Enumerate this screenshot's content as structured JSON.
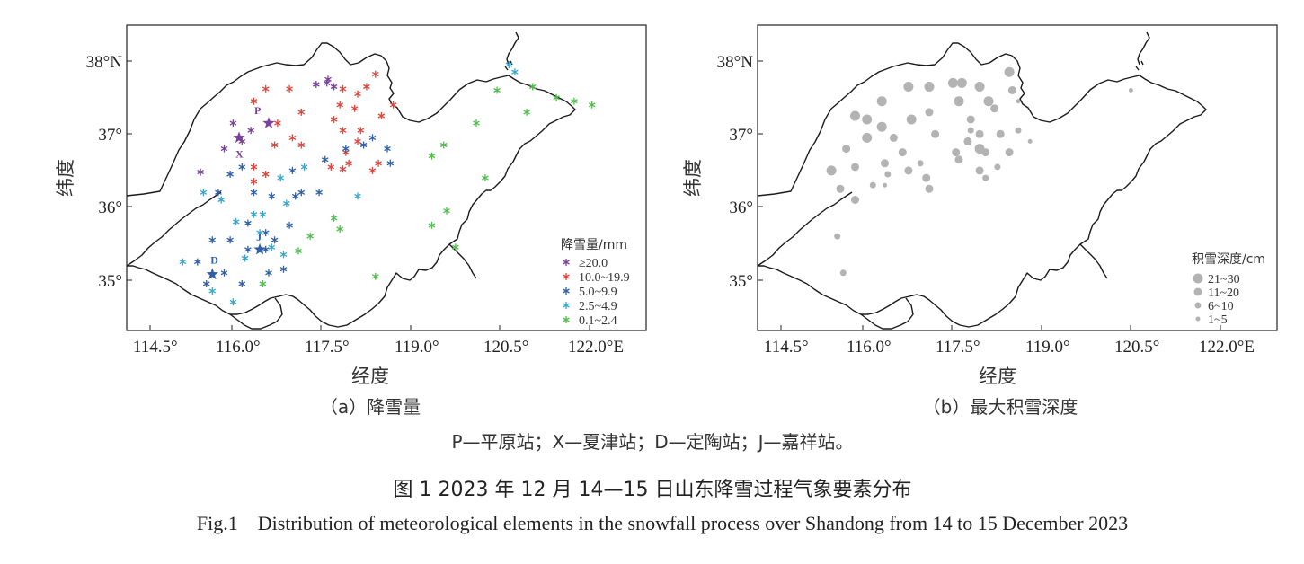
{
  "panel_a": {
    "caption": "（a）降雪量",
    "xlabel": "经度",
    "ylabel": "纬度",
    "x_ticks": [
      "114.5°",
      "116.0°",
      "117.5°",
      "119.0°",
      "120.5°",
      "122.0°E"
    ],
    "y_ticks": [
      "38°N",
      "37°",
      "36°",
      "35°"
    ],
    "legend": {
      "title": "降雪量/mm",
      "items": [
        {
          "label": "≥20.0",
          "color": "#7b3f9e"
        },
        {
          "label": "10.0~19.9",
          "color": "#e0453a"
        },
        {
          "label": "5.0~9.9",
          "color": "#2f5fa8"
        },
        {
          "label": "2.5~4.9",
          "color": "#3aa6c9"
        },
        {
          "label": "0.1~2.4",
          "color": "#4fbf4a"
        }
      ]
    },
    "stations": [
      {
        "id": "P",
        "label": "P",
        "lon": 116.5,
        "lat": 37.15,
        "color": "#7b3f9e"
      },
      {
        "id": "X",
        "label": "X",
        "lon": 116.0,
        "lat": 36.95,
        "color": "#7b3f9e"
      },
      {
        "id": "D",
        "label": "D",
        "lon": 115.55,
        "lat": 35.08,
        "color": "#2f5fa8"
      },
      {
        "id": "J",
        "label": "J",
        "lon": 116.35,
        "lat": 35.42,
        "color": "#2f5fa8"
      }
    ]
  },
  "panel_b": {
    "caption": "（b）最大积雪深度",
    "xlabel": "经度",
    "ylabel": "纬度",
    "x_ticks": [
      "114.5°",
      "116.0°",
      "117.5°",
      "119.0°",
      "120.5°",
      "122.0°E"
    ],
    "y_ticks": [
      "38°N",
      "37°",
      "36°",
      "35°"
    ],
    "legend": {
      "title": "积雪深度/cm",
      "items": [
        {
          "label": "21~30",
          "r": 5.5
        },
        {
          "label": "11~20",
          "r": 4.5
        },
        {
          "label": "6~10",
          "r": 3.5
        },
        {
          "label": "1~5",
          "r": 2.5
        }
      ],
      "color": "#b3b3b3"
    }
  },
  "note": "P—平原站；X—夏津站；D—定陶站；J—嘉祥站。",
  "figure_title_cn": "图 1   2023 年 12 月 14—15 日山东降雪过程气象要素分布",
  "figure_title_en": "Fig.1    Distribution of meteorological elements in the snowfall process over Shandong from 14 to 15 December 2023",
  "chart_data": [
    {
      "type": "scatter",
      "title": "（a）降雪量",
      "xlabel": "经度",
      "ylabel": "纬度",
      "xlim": [
        114.0,
        122.5
      ],
      "ylim": [
        34.3,
        38.5
      ],
      "series": [
        {
          "name": "≥20.0",
          "points": [
            [
              115.9,
              37.15
            ],
            [
              116.2,
              37.05
            ],
            [
              116.05,
              36.9
            ],
            [
              115.75,
              36.8
            ],
            [
              117.3,
              37.68
            ],
            [
              117.48,
              37.7
            ],
            [
              117.6,
              37.65
            ],
            [
              115.35,
              36.48
            ],
            [
              117.5,
              37.75
            ]
          ]
        },
        {
          "name": "10.0~19.9",
          "points": [
            [
              116.85,
              37.62
            ],
            [
              116.45,
              37.62
            ],
            [
              116.25,
              37.45
            ],
            [
              117.05,
              37.3
            ],
            [
              116.65,
              37.15
            ],
            [
              116.9,
              36.95
            ],
            [
              117.05,
              36.85
            ],
            [
              116.6,
              36.85
            ],
            [
              116.25,
              36.55
            ],
            [
              116.45,
              36.45
            ],
            [
              116.25,
              36.35
            ],
            [
              117.75,
              37.62
            ],
            [
              118.0,
              37.55
            ],
            [
              117.7,
              37.4
            ],
            [
              117.95,
              37.35
            ],
            [
              118.15,
              37.65
            ],
            [
              118.4,
              37.25
            ],
            [
              118.6,
              37.4
            ],
            [
              118.3,
              37.82
            ],
            [
              117.6,
              37.2
            ],
            [
              117.75,
              37.05
            ],
            [
              118.05,
              37.05
            ],
            [
              118.0,
              36.9
            ],
            [
              117.8,
              36.75
            ],
            [
              118.25,
              36.5
            ],
            [
              117.85,
              36.6
            ],
            [
              117.75,
              36.52
            ],
            [
              118.35,
              36.6
            ],
            [
              117.55,
              36.55
            ]
          ]
        },
        {
          "name": "5.0~9.9",
          "points": [
            [
              115.85,
              36.45
            ],
            [
              116.05,
              36.55
            ],
            [
              115.65,
              36.2
            ],
            [
              116.25,
              36.2
            ],
            [
              116.15,
              35.78
            ],
            [
              115.55,
              35.55
            ],
            [
              115.85,
              35.55
            ],
            [
              116.15,
              35.42
            ],
            [
              116.45,
              35.42
            ],
            [
              116.6,
              35.55
            ],
            [
              115.3,
              35.25
            ],
            [
              115.75,
              35.1
            ],
            [
              115.45,
              34.95
            ],
            [
              116.05,
              34.95
            ],
            [
              116.5,
              35.1
            ],
            [
              116.75,
              35.15
            ],
            [
              117.05,
              36.2
            ],
            [
              116.9,
              36.5
            ],
            [
              117.35,
              36.2
            ],
            [
              117.45,
              36.65
            ],
            [
              117.8,
              36.8
            ],
            [
              118.1,
              36.85
            ],
            [
              118.25,
              36.95
            ],
            [
              118.5,
              36.8
            ],
            [
              118.55,
              36.6
            ],
            [
              116.55,
              36.15
            ],
            [
              116.95,
              36.15
            ],
            [
              116.85,
              35.75
            ],
            [
              116.45,
              35.65
            ]
          ]
        },
        {
          "name": "2.5~4.9",
          "points": [
            [
              115.4,
              36.2
            ],
            [
              115.95,
              35.8
            ],
            [
              116.1,
              35.3
            ],
            [
              115.9,
              34.7
            ],
            [
              115.55,
              34.85
            ],
            [
              115.05,
              35.25
            ],
            [
              116.35,
              35.65
            ],
            [
              116.55,
              35.45
            ],
            [
              116.75,
              35.35
            ],
            [
              116.25,
              35.9
            ],
            [
              118.0,
              36.15
            ],
            [
              116.7,
              36.4
            ],
            [
              117.1,
              36.55
            ],
            [
              116.4,
              35.9
            ],
            [
              120.65,
              37.85
            ],
            [
              120.55,
              37.95
            ],
            [
              115.7,
              36.1
            ],
            [
              116.8,
              36.05
            ]
          ]
        },
        {
          "name": "0.1~2.4",
          "points": [
            [
              117.2,
              35.6
            ],
            [
              117.6,
              35.85
            ],
            [
              117.7,
              35.7
            ],
            [
              118.3,
              35.05
            ],
            [
              117.0,
              35.4
            ],
            [
              116.4,
              34.95
            ],
            [
              119.25,
              36.7
            ],
            [
              119.45,
              36.85
            ],
            [
              119.25,
              35.75
            ],
            [
              119.5,
              35.95
            ],
            [
              119.65,
              35.45
            ],
            [
              120.15,
              36.4
            ],
            [
              120.0,
              37.15
            ],
            [
              120.35,
              37.6
            ],
            [
              120.85,
              37.3
            ],
            [
              121.35,
              37.5
            ],
            [
              121.65,
              37.45
            ],
            [
              121.95,
              37.4
            ],
            [
              120.95,
              37.65
            ]
          ]
        }
      ]
    },
    {
      "type": "scatter",
      "title": "（b）最大积雪深度",
      "xlabel": "经度",
      "ylabel": "纬度",
      "xlim": [
        114.0,
        122.5
      ],
      "ylim": [
        34.3,
        38.5
      ],
      "series": [
        {
          "name": "21~30",
          "points": [
            [
              115.35,
              36.5
            ],
            [
              116.2,
              37.45
            ],
            [
              115.95,
              37.2
            ],
            [
              115.75,
              37.25
            ],
            [
              116.2,
              37.1
            ],
            [
              116.7,
              37.2
            ],
            [
              115.95,
              36.95
            ],
            [
              116.65,
              37.65
            ],
            [
              117.0,
              37.65
            ],
            [
              117.4,
              37.7
            ],
            [
              117.55,
              37.7
            ],
            [
              117.5,
              37.45
            ],
            [
              117.85,
              37.65
            ],
            [
              118.35,
              37.85
            ],
            [
              118.0,
              37.45
            ],
            [
              117.85,
              36.8
            ]
          ]
        },
        {
          "name": "11~20",
          "points": [
            [
              115.6,
              36.8
            ],
            [
              116.4,
              36.95
            ],
            [
              116.25,
              36.6
            ],
            [
              116.55,
              36.75
            ],
            [
              117.1,
              37.0
            ],
            [
              117.0,
              37.3
            ],
            [
              117.7,
              37.2
            ],
            [
              117.85,
              37.0
            ],
            [
              117.95,
              36.75
            ],
            [
              117.5,
              36.65
            ],
            [
              117.85,
              36.5
            ],
            [
              116.65,
              36.5
            ],
            [
              116.95,
              36.4
            ],
            [
              115.75,
              36.55
            ],
            [
              115.5,
              36.25
            ],
            [
              115.75,
              36.1
            ],
            [
              117.0,
              36.25
            ],
            [
              117.45,
              36.75
            ],
            [
              117.65,
              36.9
            ],
            [
              118.2,
              37.0
            ],
            [
              118.35,
              36.75
            ],
            [
              118.1,
              37.35
            ],
            [
              118.4,
              37.6
            ]
          ]
        },
        {
          "name": "6~10",
          "points": [
            [
              116.05,
              36.3
            ],
            [
              116.3,
              36.45
            ],
            [
              115.45,
              35.6
            ],
            [
              115.55,
              35.1
            ],
            [
              117.7,
              37.05
            ],
            [
              118.5,
              37.05
            ],
            [
              118.15,
              36.55
            ],
            [
              117.95,
              36.4
            ],
            [
              116.85,
              36.6
            ]
          ]
        },
        {
          "name": "1~5",
          "points": [
            [
              120.4,
              37.6
            ],
            [
              118.5,
              37.45
            ],
            [
              118.7,
              36.9
            ],
            [
              116.25,
              36.3
            ]
          ]
        }
      ]
    }
  ]
}
